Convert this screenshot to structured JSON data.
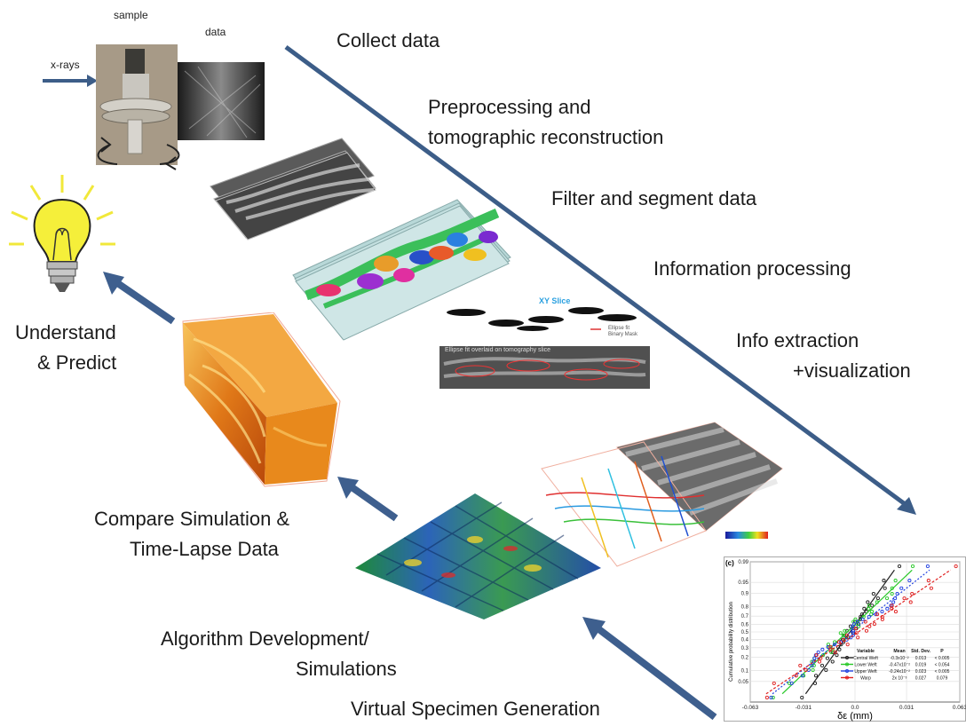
{
  "labels": {
    "sample": "sample",
    "data": "data",
    "xrays": "x-rays"
  },
  "steps": {
    "collect": "Collect data",
    "preprocess_1": "Preprocessing and",
    "preprocess_2": "tomographic reconstruction",
    "filter": "Filter and segment data",
    "info_processing": "Information processing",
    "info_extraction": "Info extraction",
    "visualization": "+visualization",
    "understand_1": "Understand",
    "understand_2": "& Predict",
    "compare_1": "Compare Simulation &",
    "compare_2": "Time-Lapse Data",
    "algorithm_1": "Algorithm Development/",
    "algorithm_2": "Simulations",
    "virtual": "Virtual Specimen Generation"
  },
  "inset": {
    "xy_slice": "XY Slice",
    "legend_ellipse": "Ellipse fit",
    "legend_mask": "Binary Mask",
    "overlay_caption": "Ellipse fit overlaid on tomography slice"
  },
  "chart_data": {
    "type": "scatter",
    "panel_label": "(c)",
    "xlabel": "δε (mm)",
    "ylabel": "Cumulative probability distribution",
    "x_ticks": [
      "-0.063",
      "-0.031",
      "0.0",
      "0.031",
      "0.063"
    ],
    "y_ticks": [
      "0.99",
      "0.95",
      "0.9",
      "0.8",
      "0.7",
      "0.6",
      "0.5",
      "0.4",
      "0.3",
      "0.2",
      "0.1",
      "0.05"
    ],
    "xlim": [
      -0.063,
      0.063
    ],
    "ylim": [
      0.01,
      0.99
    ],
    "table": {
      "headers": [
        "Variable",
        "Mean",
        "Std. Dev.",
        "P"
      ],
      "rows": [
        [
          "Central Weft",
          "-0.3x10⁻²",
          "0.013",
          "< 0.005"
        ],
        [
          "Lower Weft",
          "-0.47x10⁻²",
          "0.019",
          "< 0.054"
        ],
        [
          "Upper Weft",
          "-0.24x10⁻²",
          "0.023",
          "< 0.005"
        ],
        [
          "Warp",
          "2x 10⁻³",
          "0.027",
          "0.079"
        ]
      ]
    },
    "series": [
      {
        "color": "#222222",
        "mean": -0.003,
        "sd": 0.013
      },
      {
        "color": "#28c828",
        "mean": -0.0047,
        "sd": 0.019
      },
      {
        "color": "#2040e0",
        "mean": -0.0024,
        "sd": 0.023
      },
      {
        "color": "#e02020",
        "mean": 0.002,
        "sd": 0.027
      }
    ]
  },
  "colors": {
    "arrow_main": "#3c5d88",
    "arrow_cycle": "#3e5f8e",
    "bulb": "#f5ef3a"
  }
}
